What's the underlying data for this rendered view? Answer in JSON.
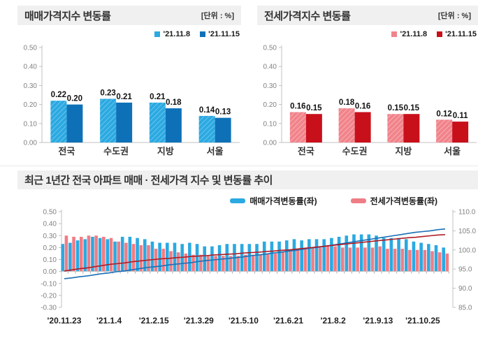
{
  "accent_colors": {
    "sale_light_blue": "#2ba9e1",
    "sale_dark_blue": "#0e71b8",
    "jeonse_pink": "#f1838b",
    "jeonse_dark_red": "#c8101b",
    "trend_bar_blue": "#2ba9e1",
    "trend_bar_pink": "#ef7d85",
    "trend_line_blue": "#1b6fb5",
    "trend_line_red": "#b01c24",
    "header_gray": "#f0f0f0"
  },
  "chart_data": [
    {
      "type": "bar",
      "title": "매매가격지수 변동률",
      "unit": "[단위 : %]",
      "legend_position": "top-right",
      "grid": false,
      "ylim": [
        0,
        0.5
      ],
      "y_ticks": [
        "0.50",
        "0.40",
        "0.30",
        "0.20",
        "0.10",
        "0.00"
      ],
      "categories": [
        "전국",
        "수도권",
        "지방",
        "서울"
      ],
      "series": [
        {
          "name": "'21.11.8",
          "color": "#2ba9e1",
          "hatch": true,
          "hatch_color": "#6cc4ec",
          "values": [
            0.22,
            0.23,
            0.21,
            0.14
          ]
        },
        {
          "name": "'21.11.15",
          "color": "#0e71b8",
          "hatch": false,
          "hatch_color": "",
          "values": [
            0.2,
            0.21,
            0.18,
            0.13
          ]
        }
      ]
    },
    {
      "type": "bar",
      "title": "전세가격지수 변동률",
      "unit": "[단위 : %]",
      "legend_position": "top-right",
      "grid": false,
      "ylim": [
        0,
        0.5
      ],
      "y_ticks": [
        "0.50",
        "0.40",
        "0.30",
        "0.20",
        "0.10",
        "0.00"
      ],
      "categories": [
        "전국",
        "수도권",
        "지방",
        "서울"
      ],
      "series": [
        {
          "name": "'21.11.8",
          "color": "#f1838b",
          "hatch": true,
          "hatch_color": "#f7b0b5",
          "values": [
            0.16,
            0.18,
            0.15,
            0.12
          ]
        },
        {
          "name": "'21.11.15",
          "color": "#c8101b",
          "hatch": false,
          "hatch_color": "",
          "values": [
            0.15,
            0.16,
            0.15,
            0.11
          ]
        }
      ]
    },
    {
      "type": "bar+line",
      "title": "최근 1년간 전국 아파트 매매 · 전세가격 지수 및 변동률 추이",
      "legend_position": "top-center",
      "grid": false,
      "n_points": 52,
      "left_axis": {
        "lim": [
          -0.3,
          0.5
        ],
        "ticks": [
          "0.50",
          "0.40",
          "0.30",
          "0.20",
          "0.10",
          "0.00",
          "-0.10",
          "-0.20",
          "-0.30"
        ]
      },
      "right_axis": {
        "lim": [
          85,
          110
        ],
        "ticks": [
          "110.0",
          "105.0",
          "100.0",
          "95.0",
          "90.0",
          "85.0"
        ]
      },
      "x_ticks": [
        {
          "week": 0,
          "label": "'20.11.23"
        },
        {
          "week": 6,
          "label": "'21.1.4"
        },
        {
          "week": 12,
          "label": "'21.2.15"
        },
        {
          "week": 18,
          "label": "'21.3.29"
        },
        {
          "week": 24,
          "label": "'21.5.10"
        },
        {
          "week": 30,
          "label": "'21.6.21"
        },
        {
          "week": 36,
          "label": "'21.8.2"
        },
        {
          "week": 42,
          "label": "'21.9.13"
        },
        {
          "week": 48,
          "label": "'21.10.25"
        }
      ],
      "bar_series": [
        {
          "name": "매매가격변동률(좌)",
          "axis": "left",
          "color": "#2ba9e1",
          "values": [
            0.23,
            0.24,
            0.26,
            0.27,
            0.29,
            0.28,
            0.27,
            0.25,
            0.29,
            0.29,
            0.28,
            0.27,
            0.25,
            0.24,
            0.24,
            0.24,
            0.23,
            0.24,
            0.23,
            0.21,
            0.21,
            0.22,
            0.23,
            0.23,
            0.23,
            0.23,
            0.23,
            0.25,
            0.25,
            0.25,
            0.26,
            0.27,
            0.26,
            0.27,
            0.27,
            0.27,
            0.28,
            0.29,
            0.3,
            0.31,
            0.31,
            0.31,
            0.3,
            0.28,
            0.28,
            0.28,
            0.27,
            0.25,
            0.24,
            0.23,
            0.22,
            0.2
          ]
        },
        {
          "name": "전세가격변동률(좌)",
          "axis": "left",
          "color": "#ef7d85",
          "values": [
            0.3,
            0.29,
            0.29,
            0.3,
            0.3,
            0.29,
            0.28,
            0.25,
            0.24,
            0.23,
            0.22,
            0.22,
            0.19,
            0.19,
            0.17,
            0.16,
            0.15,
            0.14,
            0.14,
            0.13,
            0.13,
            0.13,
            0.13,
            0.13,
            0.14,
            0.14,
            0.14,
            0.15,
            0.15,
            0.17,
            0.17,
            0.19,
            0.19,
            0.2,
            0.2,
            0.22,
            0.21,
            0.2,
            0.2,
            0.2,
            0.2,
            0.2,
            0.21,
            0.19,
            0.19,
            0.19,
            0.18,
            0.18,
            0.18,
            0.17,
            0.16,
            0.15
          ]
        }
      ],
      "line_series": [
        {
          "name": "sale-price-index-line",
          "axis": "right",
          "color": "#1b6fb5",
          "values": [
            92.5,
            92.7,
            93.0,
            93.2,
            93.5,
            93.8,
            94.0,
            94.3,
            94.5,
            94.8,
            95.1,
            95.4,
            95.6,
            95.8,
            96.1,
            96.3,
            96.5,
            96.7,
            97.0,
            97.2,
            97.4,
            97.6,
            97.8,
            98.0,
            98.2,
            98.5,
            98.7,
            98.9,
            99.2,
            99.4,
            99.7,
            99.9,
            100.2,
            100.5,
            100.7,
            101.0,
            101.3,
            101.6,
            101.9,
            102.2,
            102.5,
            102.8,
            103.1,
            103.4,
            103.7,
            104.0,
            104.3,
            104.6,
            104.8,
            105.0,
            105.3,
            105.5
          ]
        },
        {
          "name": "jeonse-price-index-line",
          "axis": "right",
          "color": "#b01c24",
          "values": [
            94.5,
            94.8,
            95.1,
            95.3,
            95.6,
            95.9,
            96.2,
            96.4,
            96.6,
            96.9,
            97.1,
            97.3,
            97.5,
            97.7,
            97.8,
            98.0,
            98.1,
            98.3,
            98.4,
            98.5,
            98.7,
            98.8,
            98.9,
            99.0,
            99.2,
            99.3,
            99.4,
            99.6,
            99.7,
            99.9,
            100.0,
            100.2,
            100.4,
            100.6,
            100.8,
            101.0,
            101.2,
            101.4,
            101.6,
            101.8,
            102.0,
            102.2,
            102.4,
            102.6,
            102.8,
            103.0,
            103.2,
            103.3,
            103.5,
            103.7,
            103.9,
            104.0
          ]
        }
      ]
    }
  ]
}
